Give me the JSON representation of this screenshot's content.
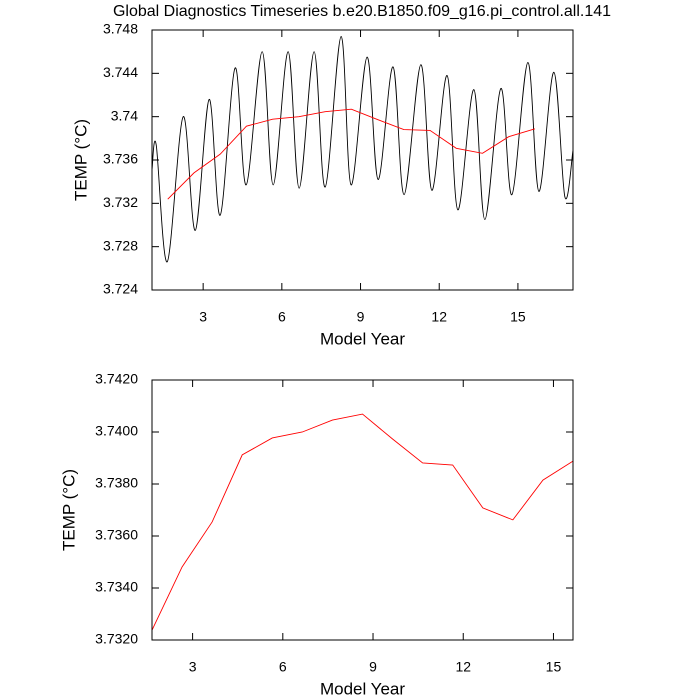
{
  "chart_data": [
    {
      "type": "line",
      "title": "Global Diagnostics Timeseries b.e20.B1850.f09_g16.pi_control.all.141",
      "xlabel": "Model Year",
      "ylabel": "TEMP (°C)",
      "xlim": [
        1.05,
        17.1
      ],
      "xticks": [
        3,
        6,
        9,
        12,
        15
      ],
      "ylim": [
        3.724,
        3.748
      ],
      "yticks": [
        3.724,
        3.728,
        3.732,
        3.736,
        3.74,
        3.744,
        3.748
      ],
      "series": [
        {
          "color": "#000000",
          "smooth": true,
          "x": [
            1.05,
            1.21,
            1.63,
            2.24,
            2.7,
            3.23,
            3.65,
            4.22,
            4.64,
            5.25,
            5.67,
            6.24,
            6.66,
            7.23,
            7.65,
            8.26,
            8.64,
            9.25,
            9.67,
            10.24,
            10.66,
            11.3,
            11.72,
            12.3,
            12.71,
            13.32,
            13.74,
            14.35,
            14.77,
            15.38,
            15.8,
            16.37,
            16.79,
            17.1
          ],
          "values": [
            3.7351,
            3.7374,
            3.7266,
            3.74,
            3.7295,
            3.7416,
            3.7309,
            3.7445,
            3.7337,
            3.746,
            3.7337,
            3.746,
            3.7334,
            3.746,
            3.7335,
            3.7474,
            3.7337,
            3.7455,
            3.7342,
            3.7446,
            3.7328,
            3.7448,
            3.7332,
            3.7438,
            3.7314,
            3.7425,
            3.7305,
            3.7426,
            3.7328,
            3.745,
            3.7331,
            3.7441,
            3.7326,
            3.7369
          ]
        },
        {
          "color": "#ff0000",
          "smooth": false,
          "x": [
            1.65,
            2.65,
            3.65,
            4.65,
            5.65,
            6.65,
            7.65,
            8.65,
            9.65,
            10.65,
            11.65,
            12.65,
            13.65,
            14.65,
            15.65
          ],
          "values": [
            3.73238,
            3.73481,
            3.73654,
            3.73912,
            3.73977,
            3.74,
            3.74046,
            3.74069,
            3.73973,
            3.73881,
            3.73873,
            3.73708,
            3.73662,
            3.73815,
            3.73888
          ]
        }
      ]
    },
    {
      "type": "line",
      "xlabel": "Model Year",
      "ylabel": "TEMP (°C)",
      "xlim": [
        1.65,
        15.65
      ],
      "xticks": [
        3,
        6,
        9,
        12,
        15
      ],
      "ylim": [
        3.732,
        3.742
      ],
      "yticks": [
        {
          "value": 3.732,
          "label": "3.7320"
        },
        {
          "value": 3.734,
          "label": "3.7340"
        },
        {
          "value": 3.736,
          "label": "3.7360"
        },
        {
          "value": 3.738,
          "label": "3.7380"
        },
        {
          "value": 3.74,
          "label": "3.7400"
        },
        {
          "value": 3.742,
          "label": "3.7420"
        }
      ],
      "series": [
        {
          "color": "#ff0000",
          "smooth": false,
          "x": [
            1.65,
            2.65,
            3.65,
            4.65,
            5.65,
            6.65,
            7.65,
            8.65,
            9.65,
            10.65,
            11.65,
            12.65,
            13.65,
            14.65,
            15.65
          ],
          "values": [
            3.73238,
            3.73481,
            3.73654,
            3.73912,
            3.73977,
            3.74,
            3.74046,
            3.74069,
            3.73973,
            3.73881,
            3.73873,
            3.73708,
            3.73662,
            3.73815,
            3.73888
          ]
        }
      ]
    }
  ]
}
